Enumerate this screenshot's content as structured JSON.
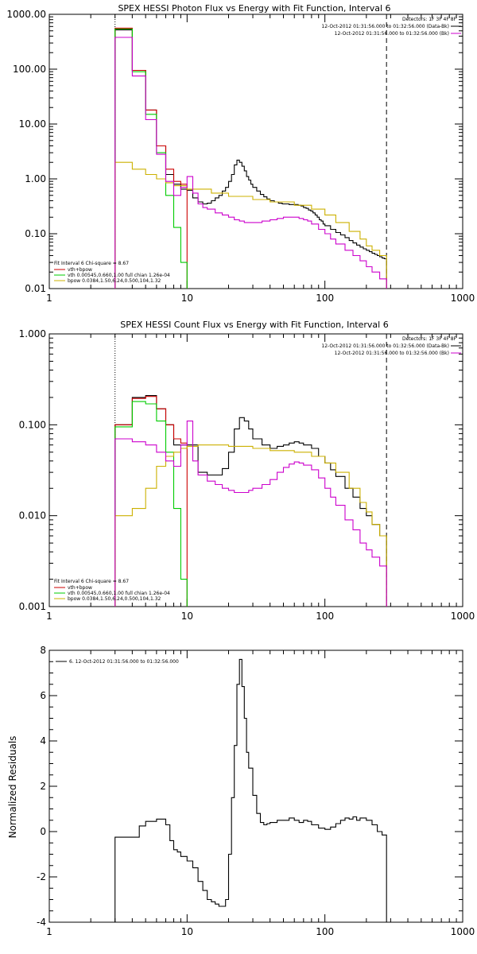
{
  "colors": {
    "data": "#000000",
    "total": "#cc0000",
    "vth": "#00cc00",
    "bpow": "#ccb000",
    "background": "#cc00cc"
  },
  "chart_data": [
    {
      "type": "line",
      "title": "SPEX HESSI Photon Flux vs Energy with Fit Function, Interval 6",
      "xlabel": "",
      "ylabel": "",
      "xscale": "log",
      "yscale": "log",
      "xlim": [
        1,
        1000
      ],
      "ylim": [
        0.01,
        1000
      ],
      "xticks": [
        "1",
        "10",
        "100",
        "1000"
      ],
      "yticks": [
        "0.01",
        "0.10",
        "1.00",
        "10.00",
        "100.00",
        "1000.00"
      ],
      "vlines": [
        {
          "x": 3,
          "style": "dotted"
        },
        {
          "x": 280,
          "style": "dashed"
        }
      ],
      "legend_right": [
        "Detectors: 1F 3F 4F 8F",
        "12-Oct-2012 01:31:56.000 to 01:32:56.000 (Data-Bk)",
        "12-Oct-2012 01:31:56.000 to 01:32:56.000 (Bk)"
      ],
      "legend_left": [
        "Fit Interval 6   Chi-square = 8.67",
        "vth+bpow",
        "vth 0.00545,0.660,1.00   full chian 1.26e-04",
        "bpow 0.0384,1.50,6.24,0.500,104,1.32"
      ],
      "series": [
        {
          "key": "data",
          "x": [
            3,
            4,
            5,
            6,
            7,
            8,
            9,
            10,
            11,
            12,
            13,
            14,
            15,
            16,
            17,
            18,
            19,
            20,
            21,
            22,
            23,
            24,
            25,
            26,
            27,
            28,
            29,
            30,
            32,
            34,
            36,
            38,
            40,
            43,
            46,
            49,
            52,
            55,
            58,
            61,
            64,
            67,
            70,
            73,
            76,
            79,
            82,
            85,
            88,
            91,
            94,
            97,
            100,
            110,
            120,
            130,
            140,
            150,
            160,
            170,
            180,
            190,
            200,
            210,
            220,
            230,
            240,
            250,
            260,
            270,
            280
          ],
          "y": [
            520,
            95,
            18,
            4,
            1.2,
            0.8,
            0.65,
            0.62,
            0.45,
            0.38,
            0.35,
            0.36,
            0.4,
            0.45,
            0.5,
            0.6,
            0.7,
            0.9,
            1.2,
            1.8,
            2.2,
            2.0,
            1.7,
            1.4,
            1.1,
            0.95,
            0.8,
            0.7,
            0.6,
            0.52,
            0.47,
            0.43,
            0.4,
            0.38,
            0.36,
            0.35,
            0.35,
            0.34,
            0.34,
            0.34,
            0.33,
            0.32,
            0.3,
            0.29,
            0.27,
            0.26,
            0.24,
            0.22,
            0.2,
            0.18,
            0.17,
            0.15,
            0.14,
            0.12,
            0.105,
            0.095,
            0.085,
            0.075,
            0.068,
            0.062,
            0.057,
            0.053,
            0.05,
            0.047,
            0.044,
            0.042,
            0.04,
            0.038,
            0.036,
            0.035,
            0.034
          ]
        },
        {
          "key": "total",
          "x": [
            3,
            4,
            5,
            6,
            7,
            8,
            9,
            10
          ],
          "y": [
            560,
            95,
            18,
            4,
            1.5,
            0.9,
            0.8,
            0.75
          ]
        },
        {
          "key": "vth",
          "x": [
            3,
            4,
            5,
            6,
            7,
            8,
            9,
            10
          ],
          "y": [
            540,
            90,
            15,
            3,
            0.5,
            0.13,
            0.03,
            0.01
          ]
        },
        {
          "key": "bpow",
          "x": [
            3,
            4,
            5,
            6,
            7,
            8,
            10,
            15,
            20,
            30,
            40,
            60,
            80,
            100,
            120,
            150,
            180,
            200,
            220,
            250,
            280
          ],
          "y": [
            2.0,
            1.5,
            1.2,
            1.0,
            0.85,
            0.75,
            0.65,
            0.55,
            0.48,
            0.42,
            0.38,
            0.33,
            0.28,
            0.22,
            0.16,
            0.11,
            0.08,
            0.06,
            0.05,
            0.04,
            0.03
          ]
        },
        {
          "key": "background",
          "x": [
            3,
            4,
            5,
            6,
            7,
            8,
            9,
            10,
            11,
            12,
            13,
            14,
            16,
            18,
            20,
            22,
            24,
            26,
            28,
            30,
            35,
            40,
            45,
            50,
            55,
            60,
            65,
            70,
            75,
            80,
            90,
            100,
            110,
            120,
            140,
            160,
            180,
            200,
            220,
            250,
            280
          ],
          "y": [
            380,
            75,
            12,
            2.8,
            0.9,
            0.5,
            0.7,
            1.1,
            0.55,
            0.35,
            0.3,
            0.28,
            0.24,
            0.22,
            0.2,
            0.18,
            0.17,
            0.16,
            0.16,
            0.16,
            0.17,
            0.18,
            0.19,
            0.2,
            0.2,
            0.2,
            0.19,
            0.18,
            0.17,
            0.15,
            0.12,
            0.1,
            0.08,
            0.065,
            0.05,
            0.04,
            0.032,
            0.025,
            0.02,
            0.015,
            0.01
          ]
        }
      ]
    },
    {
      "type": "line",
      "title": "SPEX HESSI Count Flux vs Energy with Fit Function, Interval 6",
      "xlabel": "",
      "ylabel": "",
      "xscale": "log",
      "yscale": "log",
      "xlim": [
        1,
        1000
      ],
      "ylim": [
        0.001,
        1
      ],
      "xticks": [
        "1",
        "10",
        "100",
        "1000"
      ],
      "yticks": [
        "0.001",
        "0.010",
        "0.100",
        "1.000"
      ],
      "vlines": [
        {
          "x": 3,
          "style": "dotted"
        },
        {
          "x": 280,
          "style": "dashed"
        }
      ],
      "legend_right": [
        "Detectors: 1F 3F 4F 8F",
        "12-Oct-2012 01:31:56.000 to 01:32:56.000 (Data-Bk)",
        "12-Oct-2012 01:31:56.000 to 01:32:56.000 (Bk)"
      ],
      "legend_left": [
        "Fit Interval 6   Chi-square = 8.67",
        "vth+bpow",
        "vth 0.00545,0.660,1.00   full chian 1.26e-04",
        "bpow 0.0384,1.50,6.24,0.500,104,1.32"
      ],
      "series": [
        {
          "key": "data",
          "x": [
            3,
            4,
            5,
            6,
            7,
            8,
            9,
            10,
            12,
            14,
            16,
            18,
            20,
            22,
            24,
            26,
            28,
            30,
            35,
            40,
            45,
            50,
            55,
            60,
            65,
            70,
            80,
            90,
            100,
            110,
            120,
            140,
            160,
            180,
            200,
            220,
            250,
            280
          ],
          "y": [
            0.1,
            0.2,
            0.21,
            0.15,
            0.1,
            0.06,
            0.06,
            0.06,
            0.03,
            0.028,
            0.028,
            0.033,
            0.05,
            0.09,
            0.12,
            0.11,
            0.09,
            0.07,
            0.06,
            0.055,
            0.058,
            0.06,
            0.063,
            0.065,
            0.063,
            0.06,
            0.055,
            0.045,
            0.038,
            0.032,
            0.027,
            0.02,
            0.016,
            0.012,
            0.01,
            0.008,
            0.006,
            0.005
          ]
        },
        {
          "key": "total",
          "x": [
            3,
            4,
            5,
            6,
            7,
            8,
            9,
            10
          ],
          "y": [
            0.1,
            0.195,
            0.205,
            0.15,
            0.1,
            0.07,
            0.063,
            0.062
          ]
        },
        {
          "key": "vth",
          "x": [
            3,
            4,
            5,
            6,
            7,
            8,
            9,
            10
          ],
          "y": [
            0.095,
            0.18,
            0.17,
            0.11,
            0.05,
            0.012,
            0.002,
            0.001
          ]
        },
        {
          "key": "bpow",
          "x": [
            3,
            4,
            5,
            6,
            7,
            8,
            9,
            10,
            12,
            15,
            20,
            30,
            40,
            60,
            80,
            100,
            120,
            150,
            180,
            200,
            220,
            250,
            280
          ],
          "y": [
            0.01,
            0.012,
            0.02,
            0.035,
            0.045,
            0.05,
            0.055,
            0.058,
            0.06,
            0.06,
            0.058,
            0.055,
            0.052,
            0.05,
            0.045,
            0.038,
            0.03,
            0.02,
            0.014,
            0.011,
            0.008,
            0.006,
            0.004
          ]
        },
        {
          "key": "background",
          "x": [
            3,
            4,
            5,
            6,
            7,
            8,
            9,
            10,
            11,
            12,
            14,
            16,
            18,
            20,
            22,
            25,
            28,
            30,
            35,
            40,
            45,
            50,
            55,
            60,
            65,
            70,
            80,
            90,
            100,
            110,
            120,
            140,
            160,
            180,
            200,
            220,
            250,
            280
          ],
          "y": [
            0.07,
            0.065,
            0.06,
            0.05,
            0.04,
            0.035,
            0.06,
            0.11,
            0.04,
            0.028,
            0.024,
            0.022,
            0.02,
            0.019,
            0.018,
            0.018,
            0.019,
            0.02,
            0.022,
            0.025,
            0.03,
            0.034,
            0.037,
            0.039,
            0.038,
            0.036,
            0.032,
            0.026,
            0.02,
            0.016,
            0.013,
            0.009,
            0.007,
            0.005,
            0.0042,
            0.0035,
            0.0028,
            0.0022
          ]
        }
      ]
    },
    {
      "type": "line",
      "title": "",
      "xlabel": "",
      "ylabel": "Normalized Residuals",
      "xscale": "log",
      "yscale": "linear",
      "xlim": [
        1,
        1000
      ],
      "ylim": [
        -4,
        8
      ],
      "xticks": [
        "1",
        "10",
        "100",
        "1000"
      ],
      "yticks": [
        "-4",
        "-2",
        "0",
        "2",
        "4",
        "6",
        "8"
      ],
      "legend_left": [
        "6. 12-Oct-2012 01:31:56.000 to 01:32:56.000"
      ],
      "series": [
        {
          "key": "data",
          "x": [
            3,
            4,
            4.5,
            5,
            6,
            7,
            7.5,
            8,
            8.5,
            9,
            10,
            11,
            12,
            13,
            14,
            15,
            16,
            17,
            19,
            20,
            21,
            22,
            23,
            24,
            25,
            26,
            27,
            28,
            30,
            32,
            34,
            36,
            38,
            40,
            45,
            50,
            55,
            60,
            65,
            70,
            75,
            80,
            90,
            100,
            110,
            120,
            130,
            140,
            150,
            160,
            170,
            180,
            200,
            220,
            240,
            260,
            280
          ],
          "y": [
            -0.25,
            -0.25,
            0.25,
            0.45,
            0.55,
            0.3,
            -0.4,
            -0.8,
            -0.9,
            -1.1,
            -1.3,
            -1.6,
            -2.2,
            -2.6,
            -3.0,
            -3.1,
            -3.2,
            -3.3,
            -3.0,
            -1.0,
            1.5,
            3.8,
            6.5,
            7.6,
            6.4,
            5.0,
            3.5,
            2.8,
            1.6,
            0.8,
            0.4,
            0.3,
            0.35,
            0.4,
            0.5,
            0.5,
            0.6,
            0.5,
            0.4,
            0.5,
            0.45,
            0.3,
            0.15,
            0.1,
            0.2,
            0.35,
            0.5,
            0.6,
            0.55,
            0.65,
            0.5,
            0.6,
            0.5,
            0.3,
            0.0,
            -0.15,
            -0.15
          ]
        }
      ]
    }
  ]
}
